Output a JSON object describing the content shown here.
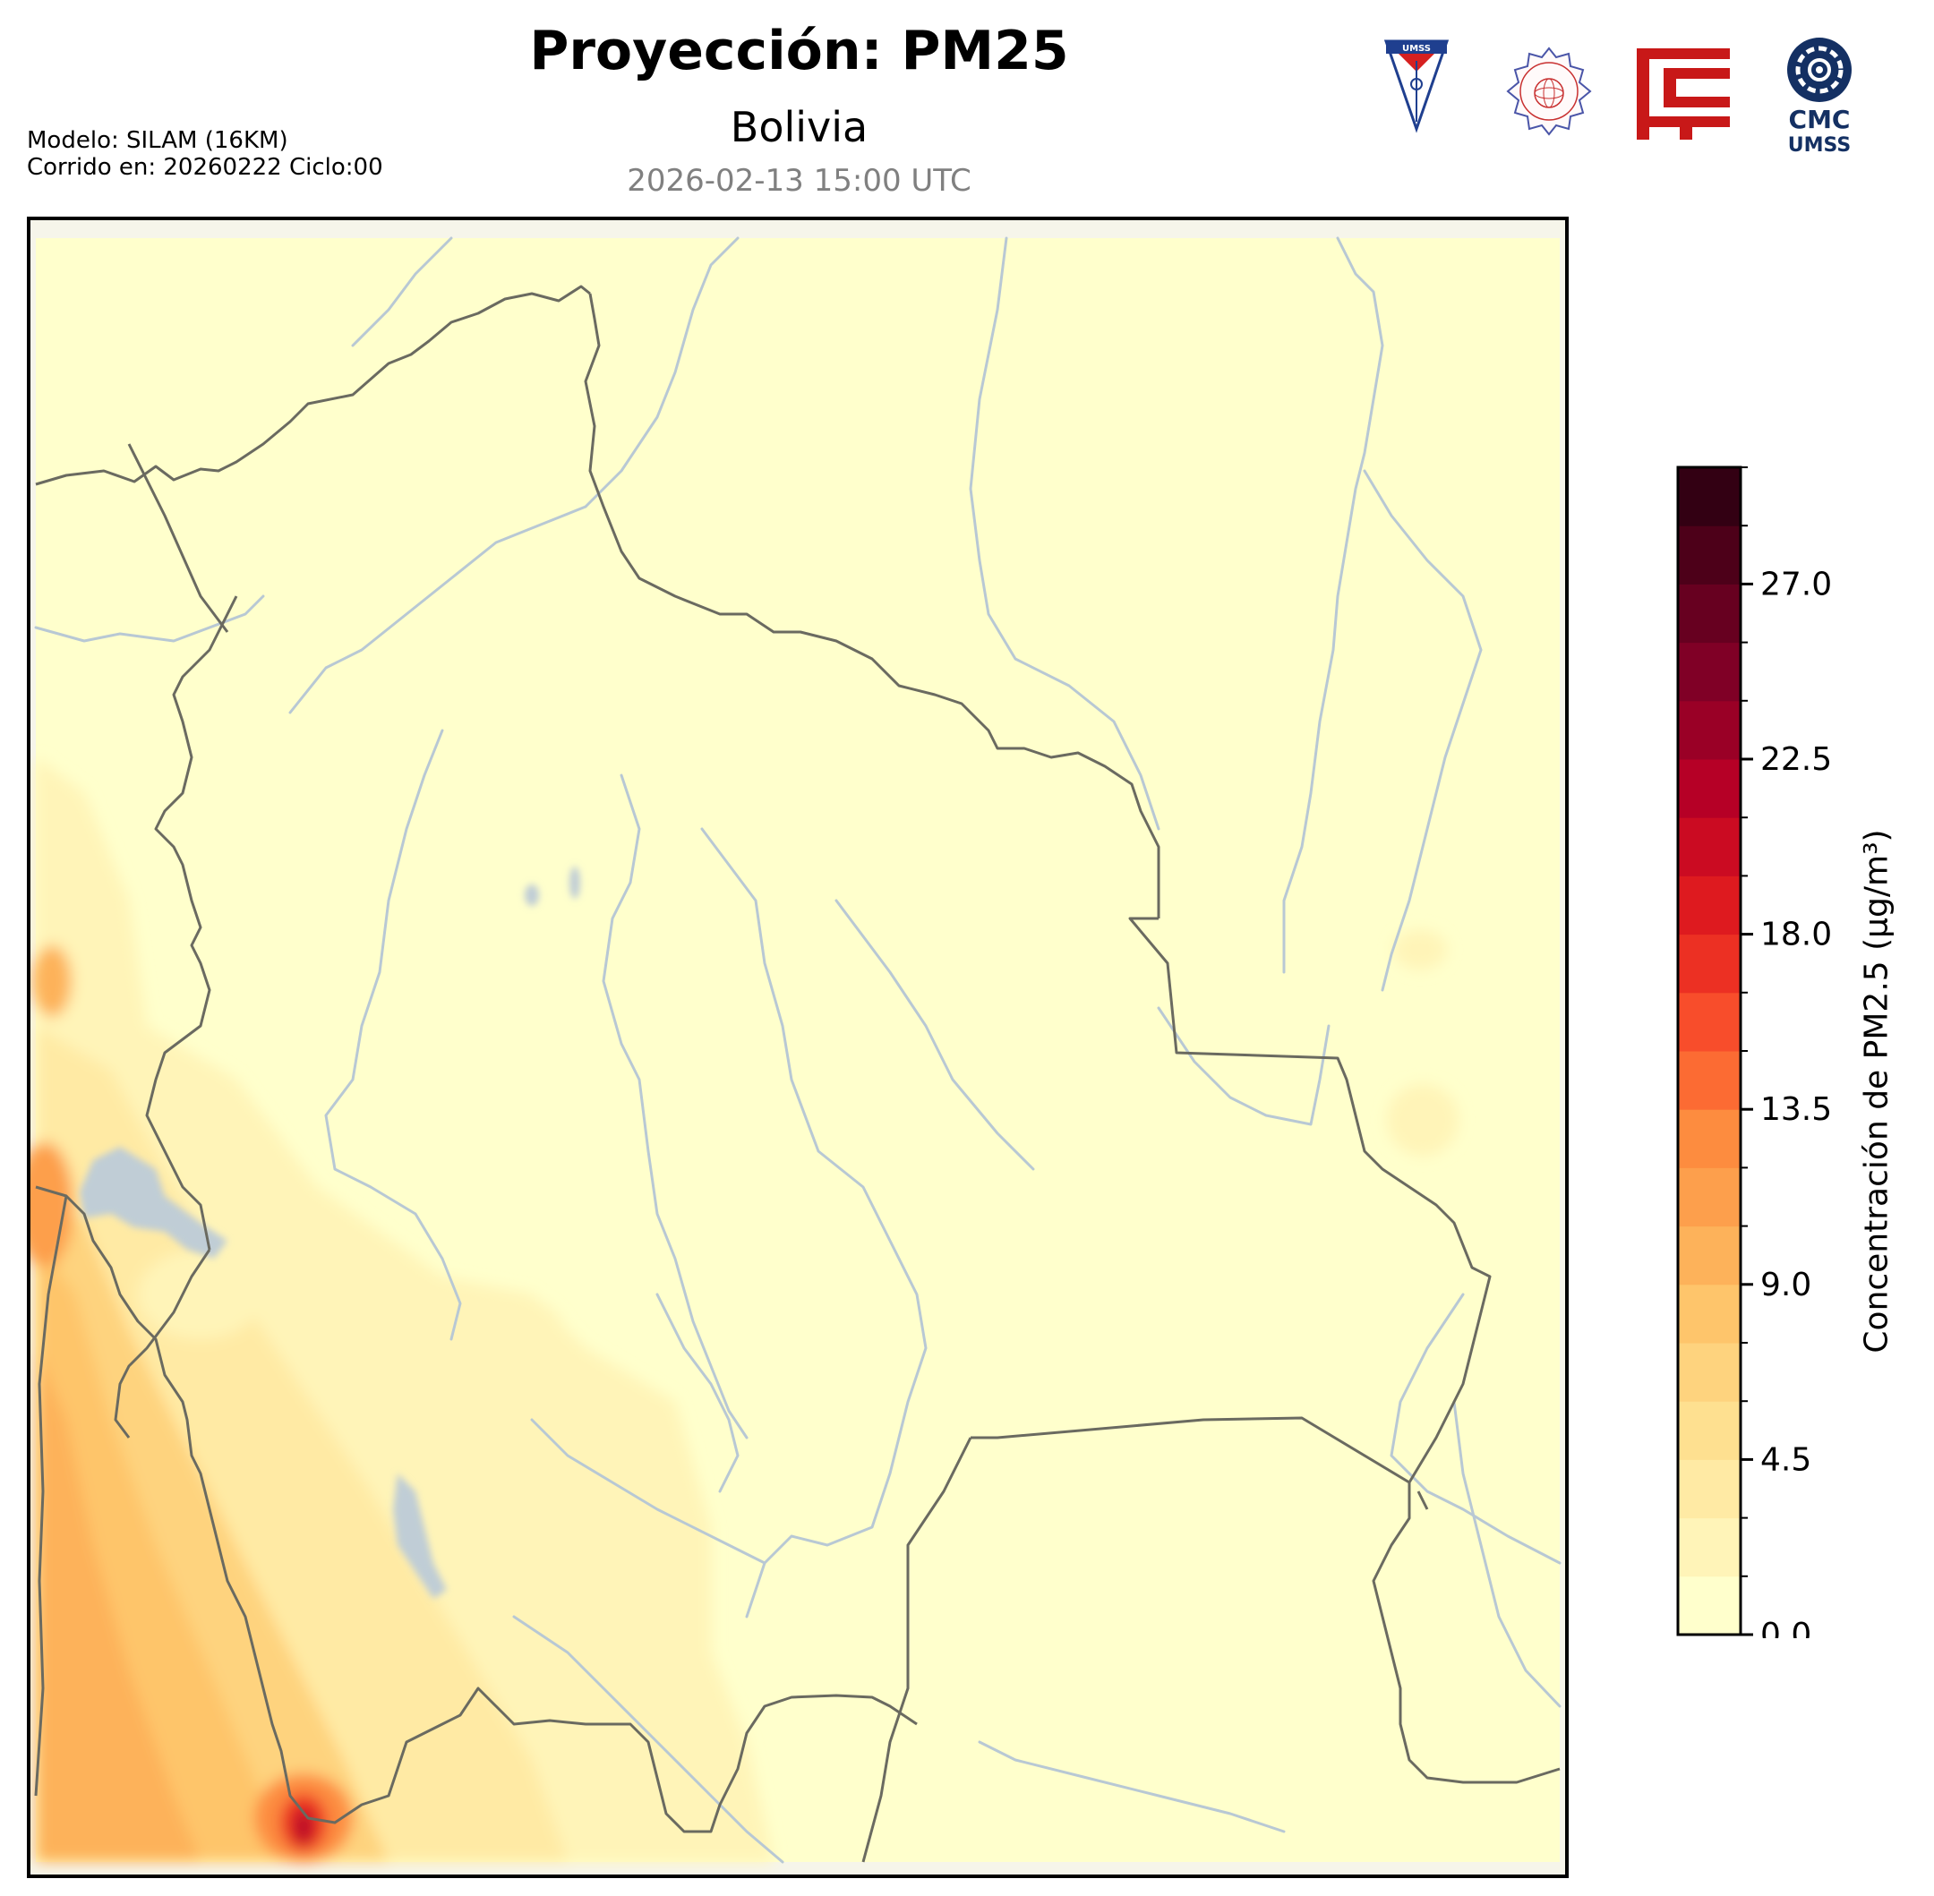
{
  "header": {
    "title": "Proyección: PM25",
    "region": "Bolivia",
    "datetime": "2026-02-13 15:00 UTC",
    "model_line": "Modelo: SILAM (16KM)",
    "run_line": "Corrido en: 20260222 Ciclo:00"
  },
  "logos": {
    "umss_shield_text": "UMSS",
    "cmc_line1": "CMC",
    "cmc_line2": "UMSS"
  },
  "colorbar": {
    "label": "Concentración de PM2.5 (µg/m³)",
    "ticks": [
      "0.0",
      "4.5",
      "9.0",
      "13.5",
      "18.0",
      "22.5",
      "27.0"
    ],
    "colors": [
      "#ffffcc",
      "#fff4b8",
      "#ffeaa4",
      "#fee090",
      "#fed37e",
      "#fec56b",
      "#fdb25a",
      "#fd9f4c",
      "#fd8c3f",
      "#fc6b33",
      "#f84d2b",
      "#ec3023",
      "#de1a1f",
      "#cb0b22",
      "#b60026",
      "#9a0026",
      "#800026",
      "#670020",
      "#4d0019",
      "#330013"
    ],
    "vmin": 0,
    "vmax": 30
  },
  "map": {
    "land_color": "#ffffcc",
    "border_color": "#6a6a60",
    "river_color": "#b8c8d4",
    "lake_color": "#c0cdd6"
  }
}
